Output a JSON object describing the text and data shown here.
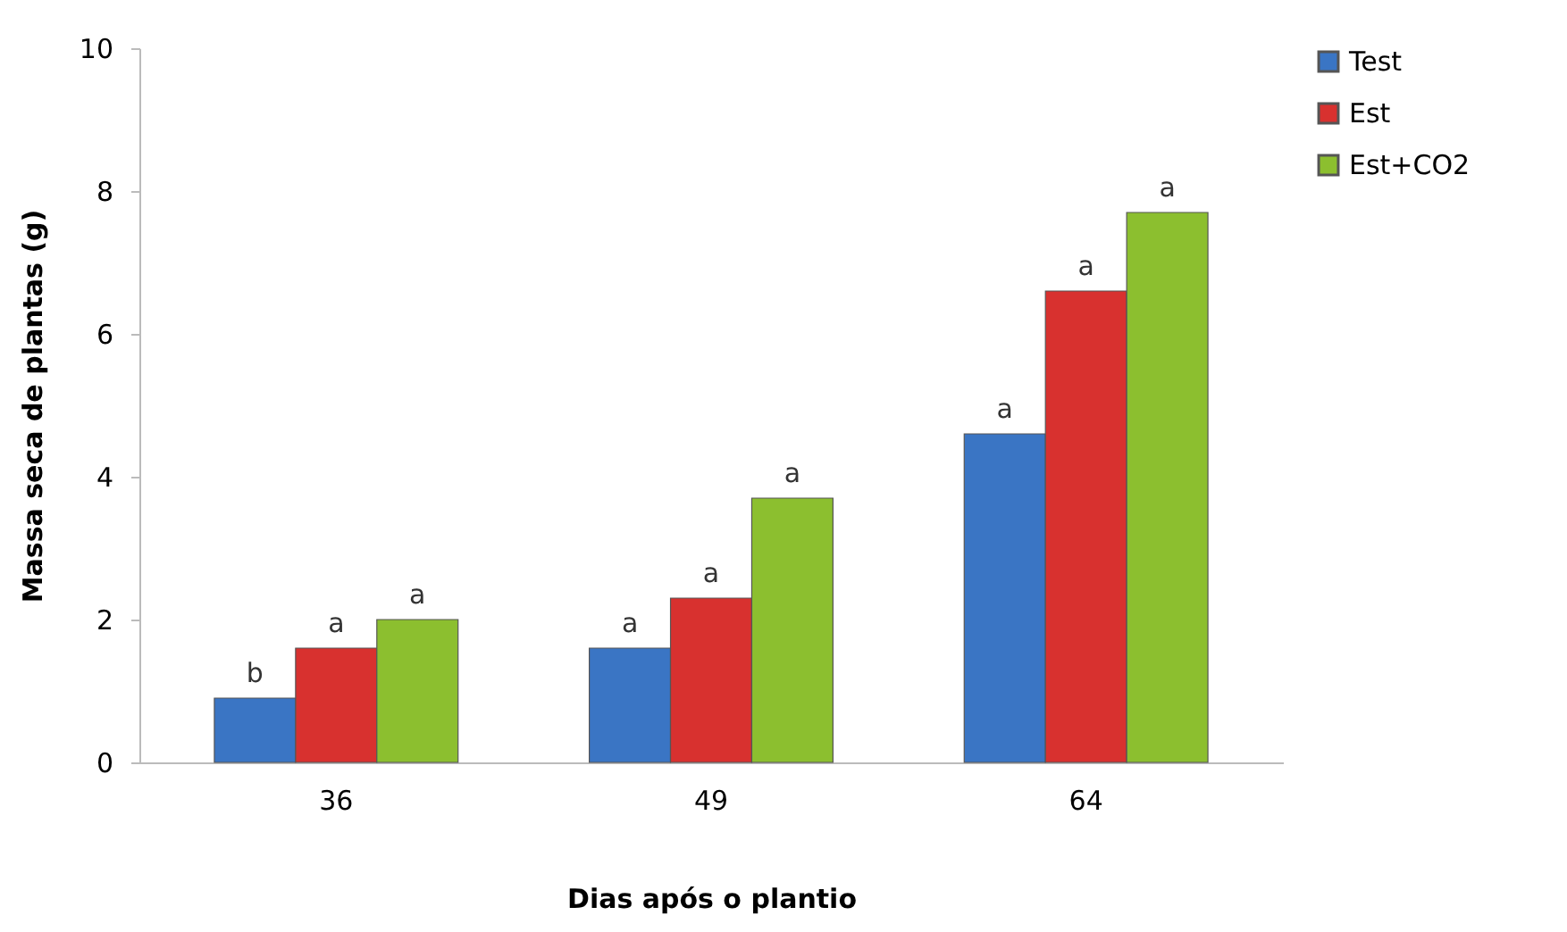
{
  "chart_data": {
    "type": "bar",
    "xlabel": "Dias após o plantio",
    "ylabel": "Massa seca de plantas (g)",
    "categories": [
      "36",
      "49",
      "64"
    ],
    "series": [
      {
        "name": "Test",
        "color": "#3a75c4",
        "values": [
          0.9,
          1.6,
          4.6
        ],
        "value_labels": [
          "b",
          "a",
          "a"
        ]
      },
      {
        "name": "Est",
        "color": "#d8312f",
        "values": [
          1.6,
          2.3,
          6.6
        ],
        "value_labels": [
          "a",
          "a",
          "a"
        ]
      },
      {
        "name": "Est+CO2",
        "color": "#8cbf2f",
        "values": [
          2.0,
          3.7,
          7.7
        ],
        "value_labels": [
          "a",
          "a",
          "a"
        ]
      }
    ],
    "ylim": [
      0,
      10
    ],
    "yticks": [
      0,
      2,
      4,
      6,
      8,
      10
    ],
    "grid": false,
    "legend": "right"
  }
}
